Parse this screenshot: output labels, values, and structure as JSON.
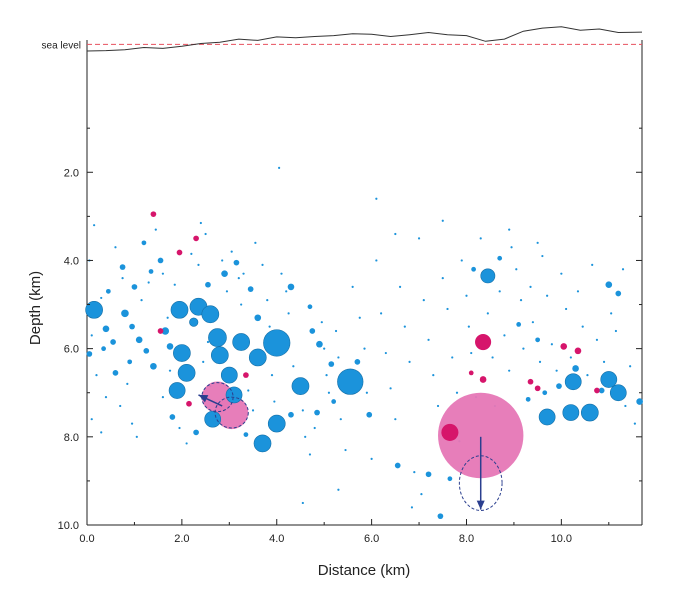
{
  "chart_data": {
    "type": "scatter",
    "title": "",
    "xlabel": "Distance  (km)",
    "ylabel": "Depth  (km)",
    "xlim": [
      0,
      11.7
    ],
    "ylim": [
      10.0,
      -1.0
    ],
    "y_inverted": true,
    "grid": false,
    "legend": "none",
    "x_ticks": [
      "0.0",
      "2.0",
      "4.0",
      "6.0",
      "8.0",
      "10.0"
    ],
    "x_tick_values": [
      0,
      2,
      4,
      6,
      8,
      10
    ],
    "y_ticks": [
      "2.0",
      "4.0",
      "6.0",
      "8.0",
      "10.0"
    ],
    "y_tick_values": [
      2,
      4,
      6,
      8,
      10
    ],
    "reference_line": {
      "label": "sea level",
      "depth": -0.9,
      "color": "#e8505f",
      "style": "dashed"
    },
    "colors": {
      "blue": "#1b93db",
      "magenta": "#d6156b",
      "large_pink": "#e677b6",
      "arrow": "#2b3f8f",
      "topography": "#333333"
    },
    "topography": {
      "x": [
        0,
        0.4,
        0.8,
        1.2,
        1.6,
        2.0,
        2.4,
        2.8,
        3.2,
        3.6,
        4.0,
        4.4,
        4.8,
        5.2,
        5.6,
        6.0,
        6.4,
        6.8,
        7.2,
        7.6,
        8.0,
        8.4,
        8.8,
        9.2,
        9.6,
        10.0,
        10.4,
        10.8,
        11.2,
        11.7
      ],
      "depth": [
        -0.75,
        -0.76,
        -0.78,
        -0.83,
        -0.81,
        -0.86,
        -0.92,
        -0.95,
        -1.02,
        -0.99,
        -1.07,
        -1.05,
        -1.08,
        -1.1,
        -1.14,
        -1.13,
        -1.08,
        -1.12,
        -1.17,
        -1.12,
        -1.1,
        -0.97,
        -1.02,
        -1.2,
        -1.27,
        -1.3,
        -1.22,
        -1.25,
        -1.17,
        -1.18
      ]
    },
    "series": [
      {
        "color": "blue",
        "points": [
          [
            0.15,
            5.12,
            0.18
          ],
          [
            0.05,
            6.12,
            0.06
          ],
          [
            0.4,
            5.55,
            0.07
          ],
          [
            0.55,
            5.85,
            0.06
          ],
          [
            0.35,
            6.0,
            0.05
          ],
          [
            0.8,
            5.2,
            0.08
          ],
          [
            0.95,
            5.5,
            0.06
          ],
          [
            1.1,
            5.8,
            0.07
          ],
          [
            1.25,
            6.05,
            0.06
          ],
          [
            0.6,
            6.55,
            0.06
          ],
          [
            0.9,
            6.3,
            0.05
          ],
          [
            1.0,
            4.6,
            0.06
          ],
          [
            0.45,
            4.7,
            0.05
          ],
          [
            0.75,
            4.15,
            0.06
          ],
          [
            1.35,
            4.25,
            0.05
          ],
          [
            1.55,
            4.0,
            0.06
          ],
          [
            1.2,
            3.6,
            0.05
          ],
          [
            1.4,
            6.4,
            0.07
          ],
          [
            1.65,
            5.6,
            0.08
          ],
          [
            1.75,
            5.95,
            0.07
          ],
          [
            1.95,
            5.12,
            0.18
          ],
          [
            2.0,
            6.1,
            0.18
          ],
          [
            2.25,
            5.4,
            0.09
          ],
          [
            2.35,
            5.05,
            0.18
          ],
          [
            2.6,
            5.22,
            0.18
          ],
          [
            2.75,
            5.75,
            0.19
          ],
          [
            2.1,
            6.55,
            0.18
          ],
          [
            1.9,
            6.95,
            0.17
          ],
          [
            2.8,
            6.15,
            0.18
          ],
          [
            3.0,
            6.6,
            0.17
          ],
          [
            3.25,
            5.85,
            0.18
          ],
          [
            3.6,
            6.2,
            0.18
          ],
          [
            4.0,
            5.87,
            0.28
          ],
          [
            3.1,
            7.05,
            0.17
          ],
          [
            2.65,
            7.6,
            0.17
          ],
          [
            4.0,
            7.7,
            0.18
          ],
          [
            3.7,
            8.15,
            0.18
          ],
          [
            4.5,
            6.85,
            0.18
          ],
          [
            5.55,
            6.75,
            0.27
          ],
          [
            2.55,
            4.55,
            0.06
          ],
          [
            2.9,
            4.3,
            0.07
          ],
          [
            3.15,
            4.05,
            0.06
          ],
          [
            3.45,
            4.65,
            0.06
          ],
          [
            3.6,
            5.3,
            0.07
          ],
          [
            4.3,
            4.6,
            0.07
          ],
          [
            4.75,
            5.6,
            0.06
          ],
          [
            4.9,
            5.9,
            0.07
          ],
          [
            5.15,
            6.35,
            0.06
          ],
          [
            4.85,
            7.45,
            0.06
          ],
          [
            5.2,
            7.2,
            0.05
          ],
          [
            5.95,
            7.5,
            0.06
          ],
          [
            5.7,
            6.3,
            0.06
          ],
          [
            1.8,
            7.55,
            0.06
          ],
          [
            2.3,
            7.9,
            0.06
          ],
          [
            3.35,
            7.95,
            0.05
          ],
          [
            6.55,
            8.65,
            0.06
          ],
          [
            7.2,
            8.85,
            0.06
          ],
          [
            7.45,
            9.8,
            0.06
          ],
          [
            7.65,
            8.95,
            0.05
          ],
          [
            8.45,
            4.35,
            0.15
          ],
          [
            8.15,
            4.2,
            0.05
          ],
          [
            8.7,
            3.95,
            0.05
          ],
          [
            9.1,
            5.45,
            0.05
          ],
          [
            9.5,
            5.8,
            0.05
          ],
          [
            10.25,
            6.75,
            0.17
          ],
          [
            10.2,
            7.45,
            0.17
          ],
          [
            9.7,
            7.55,
            0.17
          ],
          [
            10.6,
            7.45,
            0.18
          ],
          [
            11.0,
            6.7,
            0.17
          ],
          [
            11.2,
            7.0,
            0.17
          ],
          [
            10.3,
            6.45,
            0.07
          ],
          [
            10.85,
            6.95,
            0.06
          ],
          [
            11.0,
            4.55,
            0.07
          ],
          [
            11.2,
            4.75,
            0.06
          ],
          [
            11.65,
            7.2,
            0.07
          ],
          [
            9.95,
            6.85,
            0.06
          ],
          [
            9.3,
            7.15,
            0.05
          ],
          [
            9.65,
            7.0,
            0.05
          ],
          [
            4.3,
            7.5,
            0.06
          ],
          [
            4.7,
            5.05,
            0.05
          ]
        ]
      },
      {
        "color": "magenta",
        "points": [
          [
            1.4,
            2.95,
            0.06
          ],
          [
            2.3,
            3.5,
            0.06
          ],
          [
            1.95,
            3.82,
            0.06
          ],
          [
            1.55,
            5.6,
            0.06
          ],
          [
            2.15,
            7.25,
            0.06
          ],
          [
            3.35,
            6.6,
            0.06
          ],
          [
            8.35,
            5.85,
            0.17
          ],
          [
            7.65,
            7.9,
            0.18
          ],
          [
            8.35,
            6.7,
            0.07
          ],
          [
            10.05,
            5.95,
            0.07
          ],
          [
            10.35,
            6.05,
            0.07
          ],
          [
            9.35,
            6.75,
            0.06
          ],
          [
            9.5,
            6.9,
            0.06
          ],
          [
            10.75,
            6.95,
            0.06
          ],
          [
            8.1,
            6.55,
            0.05
          ]
        ]
      },
      {
        "color": "large_pink",
        "points": [
          [
            8.3,
            7.97,
            0.9
          ],
          [
            2.75,
            7.1,
            0.33
          ],
          [
            3.05,
            7.45,
            0.35
          ]
        ]
      }
    ],
    "small_points": [
      [
        0.15,
        3.2
      ],
      [
        0.05,
        4.0
      ],
      [
        0.3,
        4.85
      ],
      [
        0.1,
        5.7
      ],
      [
        0.2,
        6.6
      ],
      [
        0.4,
        7.1
      ],
      [
        0.1,
        7.6
      ],
      [
        0.3,
        7.9
      ],
      [
        0.6,
        3.7
      ],
      [
        0.75,
        4.4
      ],
      [
        0.85,
        6.8
      ],
      [
        0.7,
        7.3
      ],
      [
        0.95,
        7.7
      ],
      [
        1.05,
        8.0
      ],
      [
        1.15,
        4.9
      ],
      [
        1.3,
        4.5
      ],
      [
        1.45,
        3.3
      ],
      [
        1.6,
        4.3
      ],
      [
        1.7,
        5.3
      ],
      [
        1.85,
        4.55
      ],
      [
        1.75,
        6.5
      ],
      [
        1.6,
        7.1
      ],
      [
        1.95,
        7.8
      ],
      [
        2.1,
        8.15
      ],
      [
        2.2,
        3.85
      ],
      [
        2.35,
        4.1
      ],
      [
        2.4,
        3.15
      ],
      [
        2.5,
        3.4
      ],
      [
        2.55,
        5.85
      ],
      [
        2.45,
        6.3
      ],
      [
        2.6,
        6.85
      ],
      [
        2.85,
        4.0
      ],
      [
        2.95,
        4.7
      ],
      [
        3.05,
        3.8
      ],
      [
        3.2,
        4.4
      ],
      [
        3.25,
        5.0
      ],
      [
        3.3,
        4.3
      ],
      [
        3.4,
        6.95
      ],
      [
        3.5,
        7.4
      ],
      [
        3.55,
        3.6
      ],
      [
        3.7,
        4.1
      ],
      [
        3.8,
        4.9
      ],
      [
        3.85,
        5.5
      ],
      [
        3.9,
        6.6
      ],
      [
        3.95,
        7.2
      ],
      [
        4.05,
        1.9
      ],
      [
        4.1,
        4.3
      ],
      [
        4.2,
        4.7
      ],
      [
        4.25,
        5.2
      ],
      [
        4.35,
        6.4
      ],
      [
        4.45,
        7.0
      ],
      [
        4.55,
        7.4
      ],
      [
        4.6,
        8.0
      ],
      [
        4.7,
        8.4
      ],
      [
        4.8,
        7.8
      ],
      [
        4.55,
        9.5
      ],
      [
        4.95,
        5.4
      ],
      [
        5.0,
        6.0
      ],
      [
        5.05,
        6.6
      ],
      [
        5.1,
        7.0
      ],
      [
        5.25,
        5.6
      ],
      [
        5.3,
        6.2
      ],
      [
        5.35,
        7.6
      ],
      [
        5.45,
        8.3
      ],
      [
        5.6,
        4.6
      ],
      [
        5.75,
        5.3
      ],
      [
        5.85,
        6.0
      ],
      [
        5.9,
        7.0
      ],
      [
        6.0,
        8.5
      ],
      [
        6.1,
        4.0
      ],
      [
        6.2,
        5.2
      ],
      [
        6.3,
        6.1
      ],
      [
        6.4,
        6.9
      ],
      [
        6.5,
        7.6
      ],
      [
        6.6,
        4.6
      ],
      [
        6.7,
        5.5
      ],
      [
        6.8,
        6.3
      ],
      [
        6.9,
        8.8
      ],
      [
        7.0,
        3.5
      ],
      [
        7.1,
        4.9
      ],
      [
        7.2,
        5.8
      ],
      [
        7.3,
        6.6
      ],
      [
        7.4,
        7.3
      ],
      [
        7.5,
        4.4
      ],
      [
        7.6,
        5.1
      ],
      [
        7.7,
        6.2
      ],
      [
        7.8,
        7.0
      ],
      [
        7.85,
        8.1
      ],
      [
        7.9,
        4.0
      ],
      [
        8.0,
        4.8
      ],
      [
        8.05,
        5.5
      ],
      [
        8.1,
        6.1
      ],
      [
        8.2,
        7.1
      ],
      [
        8.3,
        3.5
      ],
      [
        8.45,
        5.2
      ],
      [
        8.55,
        6.2
      ],
      [
        8.6,
        7.3
      ],
      [
        8.7,
        4.7
      ],
      [
        8.8,
        5.7
      ],
      [
        8.9,
        6.5
      ],
      [
        8.95,
        3.7
      ],
      [
        9.05,
        4.2
      ],
      [
        9.15,
        4.9
      ],
      [
        9.2,
        6.0
      ],
      [
        9.35,
        4.6
      ],
      [
        9.4,
        5.4
      ],
      [
        9.55,
        6.3
      ],
      [
        9.6,
        3.9
      ],
      [
        9.7,
        4.8
      ],
      [
        9.8,
        5.9
      ],
      [
        9.9,
        6.5
      ],
      [
        10.0,
        4.3
      ],
      [
        10.1,
        5.1
      ],
      [
        10.2,
        6.2
      ],
      [
        10.35,
        4.7
      ],
      [
        10.45,
        5.5
      ],
      [
        10.55,
        6.6
      ],
      [
        10.65,
        4.1
      ],
      [
        10.75,
        5.8
      ],
      [
        10.9,
        6.3
      ],
      [
        11.05,
        5.2
      ],
      [
        11.15,
        5.6
      ],
      [
        11.3,
        4.2
      ],
      [
        11.45,
        6.4
      ],
      [
        11.55,
        7.7
      ],
      [
        11.35,
        7.3
      ],
      [
        6.5,
        3.4
      ],
      [
        7.5,
        3.1
      ],
      [
        8.9,
        3.3
      ],
      [
        9.5,
        3.6
      ],
      [
        6.1,
        2.6
      ],
      [
        5.3,
        9.2
      ],
      [
        6.85,
        9.6
      ],
      [
        7.05,
        9.3
      ]
    ],
    "ellipses": [
      {
        "cx": 8.3,
        "depth": 9.05,
        "rx": 0.45,
        "ry": 0.62,
        "style": "dashed"
      },
      {
        "cx": 2.75,
        "depth": 7.1,
        "rx": 0.33,
        "ry": 0.33,
        "style": "dashed"
      },
      {
        "cx": 3.05,
        "depth": 7.45,
        "rx": 0.35,
        "ry": 0.35,
        "style": "dashed"
      }
    ],
    "arrows": [
      {
        "x1": 8.3,
        "d1": 8.0,
        "x2": 8.3,
        "d2": 9.65
      },
      {
        "x1": 2.85,
        "d1": 7.3,
        "x2": 2.35,
        "d2": 7.05
      }
    ]
  }
}
